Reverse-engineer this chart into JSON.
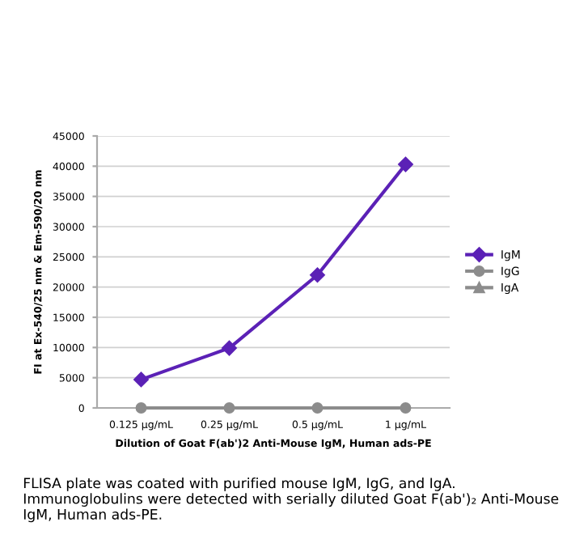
{
  "chart_data": {
    "type": "line",
    "categories": [
      "0.125 µg/mL",
      "0.25 µg/mL",
      "0.5 µg/mL",
      "1 µg/mL"
    ],
    "series": [
      {
        "name": "IgM",
        "color": "#5b21b6",
        "marker": "diamond",
        "values": [
          4700,
          9900,
          22000,
          40300
        ]
      },
      {
        "name": "IgG",
        "color": "#8c8c8c",
        "marker": "circle",
        "values": [
          0,
          0,
          0,
          0
        ]
      },
      {
        "name": "IgA",
        "color": "#8c8c8c",
        "marker": "triangle",
        "values": [
          null,
          null,
          null,
          null
        ]
      }
    ],
    "xlabel": "Dilution of Goat F(ab')2 Anti-Mouse IgM, Human ads-PE",
    "ylabel": "FI at Ex-540/25 nm & Em-590/20 nm",
    "ylim": [
      0,
      45000
    ],
    "yticks": [
      0,
      5000,
      10000,
      15000,
      20000,
      25000,
      30000,
      35000,
      40000,
      45000
    ],
    "grid": "y",
    "legend": "right",
    "line_style": "solid",
    "annotations": [
      "FLISA plate was coated with purified mouse IgM, IgG, and IgA. Immunoglobulins were detected with serially diluted Goat F(ab')₂ Anti-Mouse IgM, Human ads-PE."
    ]
  }
}
